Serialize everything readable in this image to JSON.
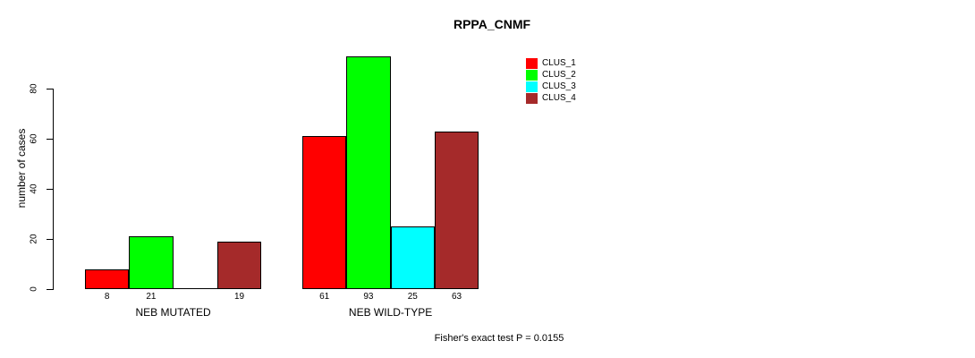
{
  "chart_data": {
    "type": "bar",
    "title": "RPPA_CNMF",
    "ylabel": "number of cases",
    "xlabel": "",
    "ylim": [
      0,
      93
    ],
    "yticks": [
      0,
      20,
      40,
      60,
      80
    ],
    "grid": false,
    "legend_position": "top-right",
    "categories": [
      "NEB MUTATED",
      "NEB WILD-TYPE"
    ],
    "series": [
      {
        "name": "CLUS_1",
        "color": "#ff0000",
        "values": [
          8,
          61
        ]
      },
      {
        "name": "CLUS_2",
        "color": "#00ff00",
        "values": [
          21,
          93
        ]
      },
      {
        "name": "CLUS_3",
        "color": "#00ffff",
        "values": [
          0,
          25
        ]
      },
      {
        "name": "CLUS_4",
        "color": "#a52a2a",
        "values": [
          19,
          63
        ]
      }
    ],
    "bar_value_labels": [
      [
        "8",
        "21",
        "",
        "19"
      ],
      [
        "61",
        "93",
        "25",
        "63"
      ]
    ],
    "annotation": "Fisher's exact test P = 0.0155"
  }
}
